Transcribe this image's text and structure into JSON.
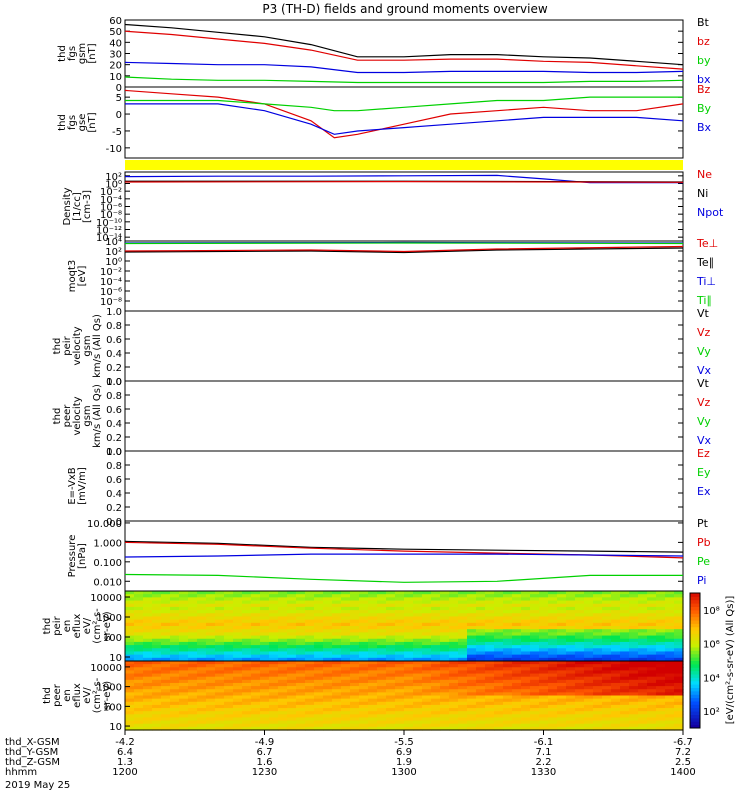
{
  "title": "P3 (TH-D) fields and ground moments overview",
  "colors": {
    "black": "#000000",
    "red": "#e00000",
    "green": "#00d000",
    "blue": "#0000e0",
    "yellow": "#ffff00"
  },
  "chart_data": {
    "type": "line",
    "panels": [
      {
        "id": "p1",
        "ylabel": [
          "thd",
          "fgs",
          "gsm",
          "[nT]"
        ],
        "scale": "linear",
        "ylim": [
          0,
          60
        ],
        "ticks": [
          {
            "v": 60,
            "t": "60"
          },
          {
            "v": 50,
            "t": "50"
          },
          {
            "v": 40,
            "t": "40"
          },
          {
            "v": 30,
            "t": "30"
          },
          {
            "v": 20,
            "t": "20"
          },
          {
            "v": 10,
            "t": "10"
          },
          {
            "v": 0,
            "t": "0"
          }
        ],
        "legend": [
          {
            "name": "Bt",
            "color": "black"
          },
          {
            "name": "bz",
            "color": "red"
          },
          {
            "name": "by",
            "color": "green"
          },
          {
            "name": "bx",
            "color": "blue"
          }
        ],
        "series": [
          {
            "name": "Bt",
            "color": "black",
            "x": [
              0,
              10,
              20,
              30,
              40,
              50,
              60,
              70,
              80,
              90,
              100,
              110,
              120
            ],
            "y": [
              56,
              53,
              49,
              45,
              38,
              27,
              27,
              29,
              29,
              27,
              26,
              23,
              20
            ]
          },
          {
            "name": "bz",
            "color": "red",
            "x": [
              0,
              10,
              20,
              30,
              40,
              50,
              60,
              70,
              80,
              90,
              100,
              110,
              120
            ],
            "y": [
              50,
              47,
              43,
              39,
              33,
              24,
              24,
              25,
              25,
              23,
              22,
              19,
              16
            ]
          },
          {
            "name": "by",
            "color": "green",
            "x": [
              0,
              10,
              20,
              30,
              40,
              50,
              60,
              70,
              80,
              90,
              100,
              110,
              120
            ],
            "y": [
              9,
              7,
              6,
              6,
              5,
              4,
              4,
              4,
              4,
              4,
              5,
              5,
              6
            ]
          },
          {
            "name": "bx",
            "color": "blue",
            "x": [
              0,
              10,
              20,
              30,
              40,
              50,
              60,
              70,
              80,
              90,
              100,
              110,
              120
            ],
            "y": [
              22,
              21,
              20,
              20,
              18,
              13,
              13,
              14,
              14,
              14,
              13,
              13,
              14
            ]
          }
        ]
      },
      {
        "id": "p2",
        "ylabel": [
          "thd",
          "fgs",
          "gse",
          "[nT]"
        ],
        "scale": "linear",
        "ylim": [
          -13,
          8
        ],
        "ticks": [
          {
            "v": 5,
            "t": "5"
          },
          {
            "v": 0,
            "t": "0"
          },
          {
            "v": -5,
            "t": "-5"
          },
          {
            "v": -10,
            "t": "-10"
          }
        ],
        "legend": [
          {
            "name": "Bz",
            "color": "red"
          },
          {
            "name": "By",
            "color": "green"
          },
          {
            "name": "Bx",
            "color": "blue"
          }
        ],
        "series": [
          {
            "name": "Bz",
            "color": "red",
            "x": [
              0,
              10,
              20,
              30,
              40,
              45,
              50,
              60,
              70,
              80,
              90,
              100,
              110,
              120
            ],
            "y": [
              7,
              6,
              5,
              3,
              -2,
              -7,
              -6,
              -3,
              0,
              1,
              2,
              1,
              1,
              3
            ]
          },
          {
            "name": "By",
            "color": "green",
            "x": [
              0,
              10,
              20,
              30,
              40,
              45,
              50,
              60,
              70,
              80,
              90,
              100,
              110,
              120
            ],
            "y": [
              4,
              4,
              4,
              3,
              2,
              1,
              1,
              2,
              3,
              4,
              4,
              5,
              5,
              5
            ]
          },
          {
            "name": "Bx",
            "color": "blue",
            "x": [
              0,
              10,
              20,
              30,
              40,
              45,
              50,
              60,
              70,
              80,
              90,
              100,
              110,
              120
            ],
            "y": [
              3,
              3,
              3,
              1,
              -3,
              -6,
              -5,
              -4,
              -3,
              -2,
              -1,
              -1,
              -1,
              -2
            ]
          }
        ]
      },
      {
        "id": "p3",
        "ylabel": [
          "Density",
          "[1/cc]",
          "[cm-3]"
        ],
        "scale": "log",
        "ylim": [
          -15,
          3
        ],
        "ticks": [
          {
            "v": 2,
            "t": "10²"
          },
          {
            "v": 0,
            "t": "10⁰"
          },
          {
            "v": -2,
            "t": "10⁻²"
          },
          {
            "v": -4,
            "t": "10⁻⁴"
          },
          {
            "v": -6,
            "t": "10⁻⁶"
          },
          {
            "v": -8,
            "t": "10⁻⁸"
          },
          {
            "v": -10,
            "t": "10⁻¹⁰"
          },
          {
            "v": -12,
            "t": "10⁻¹²"
          },
          {
            "v": -14,
            "t": "10⁻¹⁴"
          }
        ],
        "legend": [
          {
            "name": "Ne",
            "color": "red"
          },
          {
            "name": "Ni",
            "color": "black"
          },
          {
            "name": "Npot",
            "color": "blue"
          }
        ],
        "series": [
          {
            "name": "Npot",
            "color": "blue",
            "x": [
              0,
              20,
              40,
              60,
              80,
              90,
              100,
              120
            ],
            "y": [
              1.8,
              1.9,
              1.9,
              2.0,
              2.1,
              1.2,
              0.2,
              0.2
            ]
          },
          {
            "name": "Ni",
            "color": "black",
            "x": [
              0,
              60,
              120
            ],
            "y": [
              0.6,
              0.6,
              0.4
            ]
          },
          {
            "name": "Ne",
            "color": "red",
            "x": [
              0,
              60,
              120
            ],
            "y": [
              0.4,
              0.5,
              0.3
            ]
          }
        ]
      },
      {
        "id": "p4",
        "ylabel": [
          "moqt3",
          "[eV]"
        ],
        "scale": "log",
        "ylim": [
          -10,
          4
        ],
        "ticks": [
          {
            "v": 4,
            "t": "10⁴"
          },
          {
            "v": 2,
            "t": "10²"
          },
          {
            "v": 0,
            "t": "10⁰"
          },
          {
            "v": -2,
            "t": "10⁻²"
          },
          {
            "v": -4,
            "t": "10⁻⁴"
          },
          {
            "v": -6,
            "t": "10⁻⁶"
          },
          {
            "v": -8,
            "t": "10⁻⁸"
          }
        ],
        "legend": [
          {
            "name": "Te⊥",
            "color": "red"
          },
          {
            "name": "Te∥",
            "color": "black"
          },
          {
            "name": "Ti⊥",
            "color": "blue"
          },
          {
            "name": "Ti∥",
            "color": "green"
          }
        ],
        "series": [
          {
            "name": "Ti⊥",
            "color": "blue",
            "x": [
              0,
              60,
              120
            ],
            "y": [
              3.6,
              3.7,
              3.6
            ]
          },
          {
            "name": "Ti∥",
            "color": "green",
            "x": [
              0,
              60,
              120
            ],
            "y": [
              3.5,
              3.6,
              3.5
            ]
          },
          {
            "name": "Te∥",
            "color": "black",
            "x": [
              0,
              40,
              60,
              80,
              120
            ],
            "y": [
              1.8,
              2.0,
              1.7,
              2.2,
              2.6
            ]
          },
          {
            "name": "Te⊥",
            "color": "red",
            "x": [
              0,
              40,
              60,
              80,
              120
            ],
            "y": [
              2.0,
              2.2,
              1.9,
              2.4,
              2.9
            ]
          }
        ]
      },
      {
        "id": "p5",
        "ylabel": [
          "thd",
          "peir",
          "velocity",
          "gsm",
          "km/s (All Qs)"
        ],
        "scale": "linear",
        "ylim": [
          0,
          1
        ],
        "ticks": [
          {
            "v": 1,
            "t": "1.0"
          },
          {
            "v": 0.8,
            "t": "0.8"
          },
          {
            "v": 0.6,
            "t": "0.6"
          },
          {
            "v": 0.4,
            "t": "0.4"
          },
          {
            "v": 0.2,
            "t": "0.2"
          },
          {
            "v": 0,
            "t": "0.0"
          }
        ],
        "legend": [
          {
            "name": "Vt",
            "color": "black"
          },
          {
            "name": "Vz",
            "color": "red"
          },
          {
            "name": "Vy",
            "color": "green"
          },
          {
            "name": "Vx",
            "color": "blue"
          }
        ],
        "series": []
      },
      {
        "id": "p6",
        "ylabel": [
          "thd",
          "peer",
          "velocity",
          "gsm",
          "km/s (All Qs)"
        ],
        "scale": "linear",
        "ylim": [
          0,
          1
        ],
        "ticks": [
          {
            "v": 1,
            "t": "1.0"
          },
          {
            "v": 0.8,
            "t": "0.8"
          },
          {
            "v": 0.6,
            "t": "0.6"
          },
          {
            "v": 0.4,
            "t": "0.4"
          },
          {
            "v": 0.2,
            "t": "0.2"
          },
          {
            "v": 0,
            "t": "0.0"
          }
        ],
        "legend": [
          {
            "name": "Vt",
            "color": "black"
          },
          {
            "name": "Vz",
            "color": "red"
          },
          {
            "name": "Vy",
            "color": "green"
          },
          {
            "name": "Vx",
            "color": "blue"
          }
        ],
        "series": []
      },
      {
        "id": "p7",
        "ylabel": [
          "E=-VxB",
          "[mV/m]"
        ],
        "scale": "linear",
        "ylim": [
          0,
          1
        ],
        "ticks": [
          {
            "v": 1,
            "t": "1.0"
          },
          {
            "v": 0.8,
            "t": "0.8"
          },
          {
            "v": 0.6,
            "t": "0.6"
          },
          {
            "v": 0.4,
            "t": "0.4"
          },
          {
            "v": 0.2,
            "t": "0.2"
          },
          {
            "v": 0,
            "t": "0.0"
          }
        ],
        "legend": [
          {
            "name": "Ez",
            "color": "red"
          },
          {
            "name": "Ey",
            "color": "green"
          },
          {
            "name": "Ex",
            "color": "blue"
          }
        ],
        "series": []
      },
      {
        "id": "p8",
        "ylabel": [
          "Pressure",
          "[nPa]"
        ],
        "scale": "log",
        "ylim": [
          -2.5,
          1.1
        ],
        "ticks": [
          {
            "v": 1,
            "t": "10.000"
          },
          {
            "v": 0,
            "t": "1.000"
          },
          {
            "v": -1,
            "t": "0.100"
          },
          {
            "v": -2,
            "t": "0.010"
          }
        ],
        "legend": [
          {
            "name": "Pt",
            "color": "black"
          },
          {
            "name": "Pb",
            "color": "red"
          },
          {
            "name": "Pe",
            "color": "green"
          },
          {
            "name": "Pi",
            "color": "blue"
          }
        ],
        "series": [
          {
            "name": "Pt",
            "color": "black",
            "x": [
              0,
              20,
              40,
              60,
              80,
              100,
              120
            ],
            "y": [
              0.05,
              -0.05,
              -0.25,
              -0.35,
              -0.4,
              -0.45,
              -0.5
            ]
          },
          {
            "name": "Pb",
            "color": "red",
            "x": [
              0,
              20,
              40,
              60,
              80,
              100,
              120
            ],
            "y": [
              0.0,
              -0.1,
              -0.3,
              -0.45,
              -0.55,
              -0.65,
              -0.8
            ]
          },
          {
            "name": "Pi",
            "color": "blue",
            "x": [
              0,
              20,
              40,
              60,
              80,
              100,
              120
            ],
            "y": [
              -0.75,
              -0.7,
              -0.6,
              -0.6,
              -0.6,
              -0.65,
              -0.7
            ]
          },
          {
            "name": "Pe",
            "color": "green",
            "x": [
              0,
              20,
              40,
              60,
              80,
              100,
              120
            ],
            "y": [
              -1.65,
              -1.7,
              -1.9,
              -2.05,
              -2.0,
              -1.7,
              -1.7
            ]
          }
        ]
      }
    ],
    "spectrograms": [
      {
        "id": "s1",
        "ylabel": [
          "thd",
          "peir",
          "en",
          "eflux",
          "eV/",
          "(cm²-s-",
          "sr-eV)"
        ],
        "scale": "log",
        "ylim": [
          0.8,
          4.3
        ],
        "ticks": [
          {
            "v": 4,
            "t": "10000"
          },
          {
            "v": 3,
            "t": "1000"
          },
          {
            "v": 2,
            "t": "100"
          },
          {
            "v": 1,
            "t": "10"
          }
        ]
      },
      {
        "id": "s2",
        "ylabel": [
          "thd",
          "peer",
          "en",
          "eflux",
          "eV/",
          "(cm²-s-",
          "sr-eV)"
        ],
        "scale": "log",
        "ylim": [
          0.8,
          4.3
        ],
        "ticks": [
          {
            "v": 4,
            "t": "10000"
          },
          {
            "v": 3,
            "t": "1000"
          },
          {
            "v": 2,
            "t": "100"
          },
          {
            "v": 1,
            "t": "10"
          }
        ]
      }
    ],
    "colorbar": {
      "ticks": [
        {
          "v": 8,
          "t": "10⁸"
        },
        {
          "v": 6,
          "t": "10⁶"
        },
        {
          "v": 4,
          "t": "10⁴"
        },
        {
          "v": 2,
          "t": "10²"
        }
      ],
      "label": "[eV/(cm²-s-sr-eV) (All Qs)]",
      "range": [
        1,
        9
      ]
    },
    "xaxis": {
      "range": [
        0,
        120
      ],
      "labels": [
        "thd_X-GSM",
        "thd_Y-GSM",
        "thd_Z-GSM",
        "hhmm"
      ],
      "date": "2019 May 25",
      "ticks": [
        {
          "v": 0,
          "vals": [
            "-4.2",
            "6.4",
            "1.3",
            "1200"
          ]
        },
        {
          "v": 30,
          "vals": [
            "-4.9",
            "6.7",
            "1.6",
            "1230"
          ]
        },
        {
          "v": 60,
          "vals": [
            "-5.5",
            "6.9",
            "1.9",
            "1300"
          ]
        },
        {
          "v": 90,
          "vals": [
            "-6.1",
            "7.1",
            "2.2",
            "1330"
          ]
        },
        {
          "v": 120,
          "vals": [
            "-6.7",
            "7.2",
            "2.5",
            "1400"
          ]
        }
      ]
    }
  }
}
